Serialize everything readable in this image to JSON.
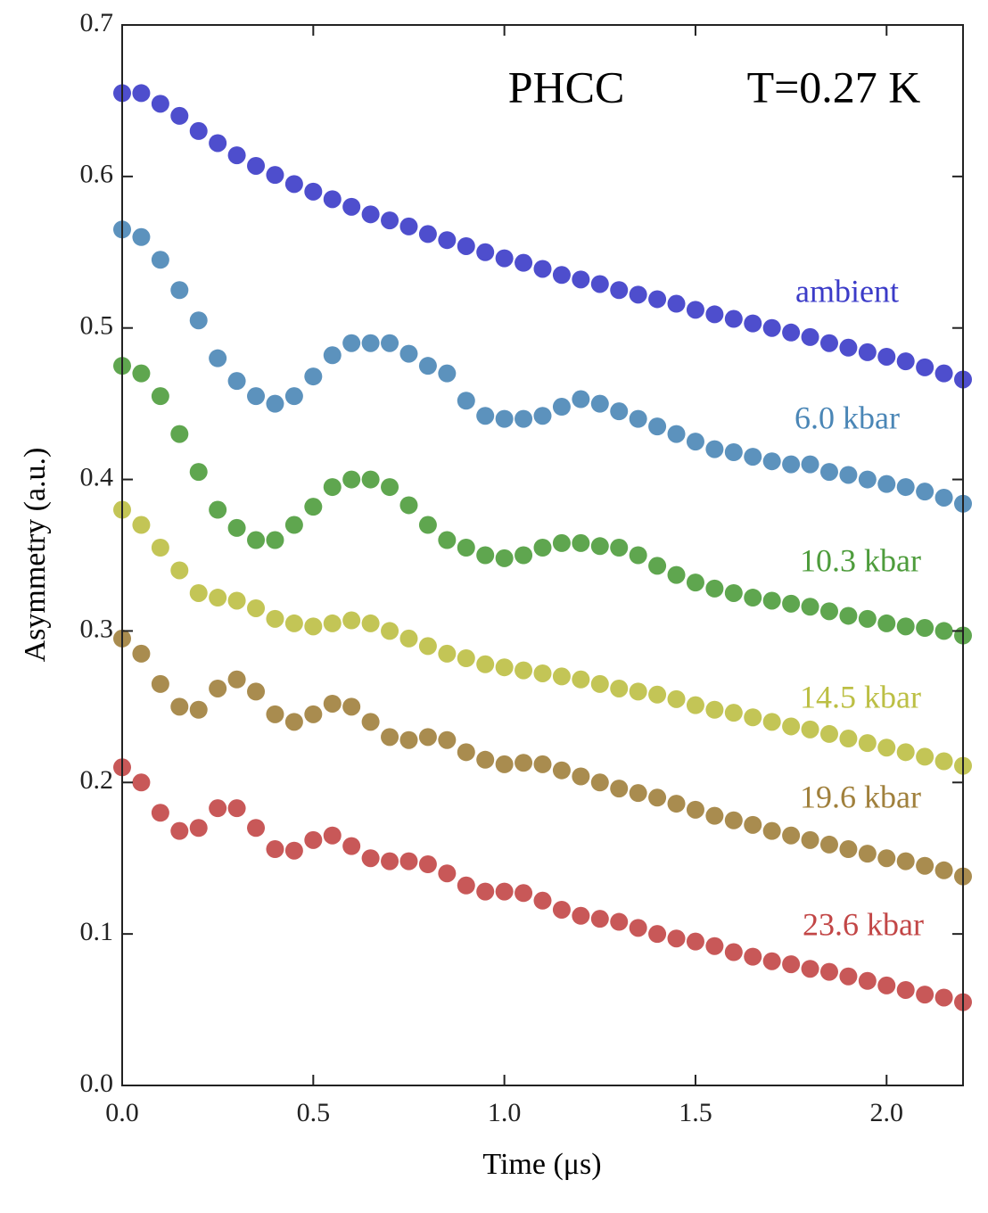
{
  "chart_data": {
    "type": "scatter",
    "annotations": [
      "PHCC",
      "T=0.27 K"
    ],
    "xlabel": "Time (μs)",
    "ylabel": "Asymmetry (a.u.)",
    "xlim": [
      0,
      2.2
    ],
    "ylim": [
      0,
      0.7
    ],
    "xticks": [
      {
        "value": 0,
        "label": "0.0"
      },
      0.5,
      {
        "value": 1,
        "label": "1.0"
      },
      1.5,
      {
        "value": 2,
        "label": "2.0"
      }
    ],
    "yticks": [
      {
        "value": 0,
        "label": "0.0"
      },
      0.1,
      0.2,
      0.3,
      0.4,
      0.5,
      0.6,
      0.7
    ],
    "x": [
      0,
      0.05,
      0.1,
      0.15,
      0.2,
      0.25,
      0.3,
      0.35,
      0.4,
      0.45,
      0.5,
      0.55,
      0.6,
      0.65,
      0.7,
      0.75,
      0.8,
      0.85,
      0.9,
      0.95,
      1.0,
      1.05,
      1.1,
      1.15,
      1.2,
      1.25,
      1.3,
      1.35,
      1.4,
      1.45,
      1.5,
      1.55,
      1.6,
      1.65,
      1.7,
      1.75,
      1.8,
      1.85,
      1.9,
      1.95,
      2.0,
      2.05,
      2.1,
      2.15,
      2.2
    ],
    "series": [
      {
        "name": "ambient",
        "color": "#3b3bc8",
        "values": [
          0.655,
          0.655,
          0.648,
          0.64,
          0.63,
          0.622,
          0.614,
          0.607,
          0.601,
          0.595,
          0.59,
          0.585,
          0.58,
          0.575,
          0.571,
          0.567,
          0.562,
          0.558,
          0.554,
          0.55,
          0.546,
          0.543,
          0.539,
          0.535,
          0.532,
          0.529,
          0.525,
          0.522,
          0.519,
          0.516,
          0.512,
          0.509,
          0.506,
          0.503,
          0.5,
          0.497,
          0.494,
          0.49,
          0.487,
          0.484,
          0.481,
          0.478,
          0.474,
          0.47,
          0.466
        ]
      },
      {
        "name": "6.0 kbar",
        "color": "#4a86b6",
        "values": [
          0.565,
          0.56,
          0.545,
          0.525,
          0.505,
          0.48,
          0.465,
          0.455,
          0.45,
          0.455,
          0.468,
          0.482,
          0.49,
          0.49,
          0.49,
          0.483,
          0.475,
          0.47,
          0.452,
          0.442,
          0.44,
          0.44,
          0.442,
          0.448,
          0.453,
          0.45,
          0.445,
          0.44,
          0.435,
          0.43,
          0.425,
          0.42,
          0.418,
          0.415,
          0.412,
          0.41,
          0.41,
          0.405,
          0.403,
          0.4,
          0.397,
          0.395,
          0.392,
          0.388,
          0.384
        ]
      },
      {
        "name": "10.3 kbar",
        "color": "#4e9c3c",
        "values": [
          0.475,
          0.47,
          0.455,
          0.43,
          0.405,
          0.38,
          0.368,
          0.36,
          0.36,
          0.37,
          0.382,
          0.395,
          0.4,
          0.4,
          0.395,
          0.383,
          0.37,
          0.36,
          0.355,
          0.35,
          0.348,
          0.35,
          0.355,
          0.358,
          0.358,
          0.356,
          0.355,
          0.35,
          0.343,
          0.337,
          0.332,
          0.328,
          0.325,
          0.322,
          0.32,
          0.318,
          0.316,
          0.313,
          0.31,
          0.308,
          0.305,
          0.303,
          0.302,
          0.3,
          0.297
        ]
      },
      {
        "name": "14.5 kbar",
        "color": "#bcbf44",
        "values": [
          0.38,
          0.37,
          0.355,
          0.34,
          0.325,
          0.322,
          0.32,
          0.315,
          0.308,
          0.305,
          0.303,
          0.305,
          0.307,
          0.305,
          0.3,
          0.295,
          0.29,
          0.285,
          0.282,
          0.278,
          0.276,
          0.274,
          0.272,
          0.27,
          0.268,
          0.265,
          0.262,
          0.26,
          0.258,
          0.255,
          0.251,
          0.248,
          0.246,
          0.243,
          0.24,
          0.237,
          0.235,
          0.232,
          0.229,
          0.226,
          0.223,
          0.22,
          0.217,
          0.214,
          0.211
        ]
      },
      {
        "name": "19.6 kbar",
        "color": "#a0803c",
        "values": [
          0.295,
          0.285,
          0.265,
          0.25,
          0.248,
          0.262,
          0.268,
          0.26,
          0.245,
          0.24,
          0.245,
          0.252,
          0.25,
          0.24,
          0.23,
          0.228,
          0.23,
          0.228,
          0.22,
          0.215,
          0.212,
          0.213,
          0.212,
          0.208,
          0.204,
          0.2,
          0.196,
          0.193,
          0.19,
          0.186,
          0.182,
          0.178,
          0.175,
          0.172,
          0.168,
          0.165,
          0.162,
          0.159,
          0.156,
          0.153,
          0.15,
          0.148,
          0.145,
          0.142,
          0.138
        ]
      },
      {
        "name": "23.6 kbar",
        "color": "#c24646",
        "values": [
          0.21,
          0.2,
          0.18,
          0.168,
          0.17,
          0.183,
          0.183,
          0.17,
          0.156,
          0.155,
          0.162,
          0.165,
          0.158,
          0.15,
          0.148,
          0.148,
          0.146,
          0.14,
          0.132,
          0.128,
          0.128,
          0.127,
          0.122,
          0.116,
          0.112,
          0.11,
          0.108,
          0.104,
          0.1,
          0.097,
          0.095,
          0.092,
          0.088,
          0.085,
          0.082,
          0.08,
          0.077,
          0.075,
          0.072,
          0.069,
          0.066,
          0.063,
          0.06,
          0.058,
          0.055
        ]
      }
    ]
  }
}
